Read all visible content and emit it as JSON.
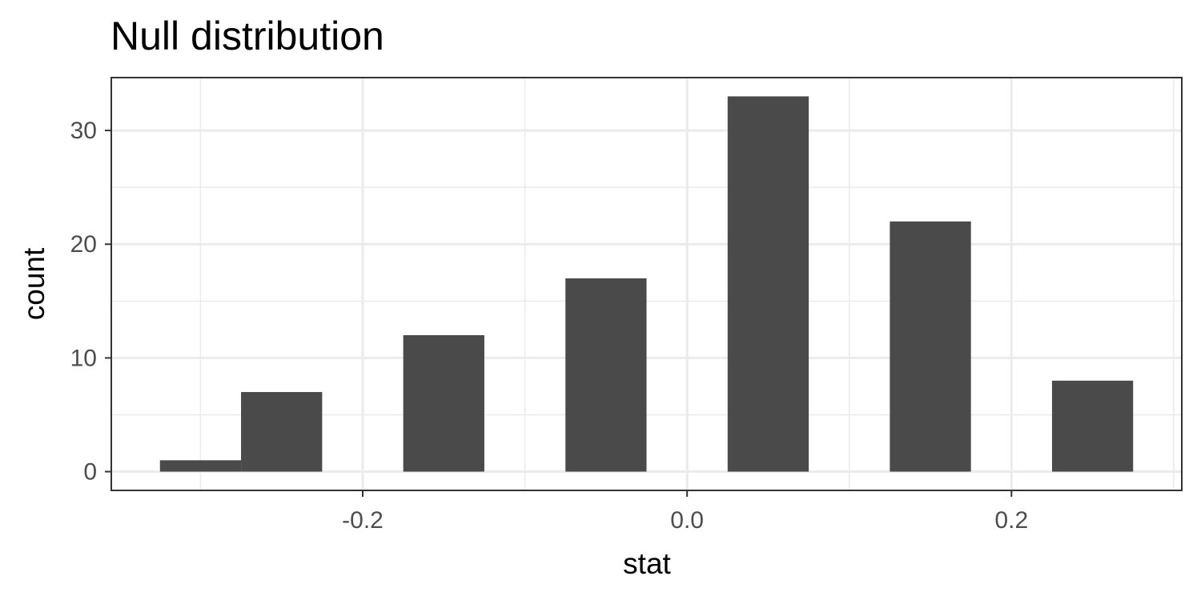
{
  "chart_data": {
    "type": "bar",
    "title": "Null distribution",
    "xlabel": "stat",
    "ylabel": "count",
    "bar_color": "#4a4a4a",
    "bins": [
      {
        "x_start": -0.325,
        "x_end": -0.275,
        "count": 1
      },
      {
        "x_start": -0.275,
        "x_end": -0.225,
        "count": 7
      },
      {
        "x_start": -0.175,
        "x_end": -0.125,
        "count": 12
      },
      {
        "x_start": -0.075,
        "x_end": -0.025,
        "count": 17
      },
      {
        "x_start": 0.025,
        "x_end": 0.075,
        "count": 33
      },
      {
        "x_start": 0.125,
        "x_end": 0.175,
        "count": 22
      },
      {
        "x_start": 0.225,
        "x_end": 0.275,
        "count": 8
      }
    ],
    "xlim": [
      -0.355,
      0.305
    ],
    "ylim": [
      -1.65,
      34.65
    ],
    "x_ticks": [
      -0.2,
      0.0,
      0.2
    ],
    "x_tick_labels": [
      "-0.2",
      "0.0",
      "0.2"
    ],
    "x_minor_ticks": [
      -0.3,
      -0.1,
      0.1,
      0.3
    ],
    "y_ticks": [
      0,
      10,
      20,
      30
    ],
    "y_tick_labels": [
      "0",
      "10",
      "20",
      "30"
    ],
    "y_minor_ticks": [
      5,
      15,
      25
    ],
    "grid": true
  }
}
